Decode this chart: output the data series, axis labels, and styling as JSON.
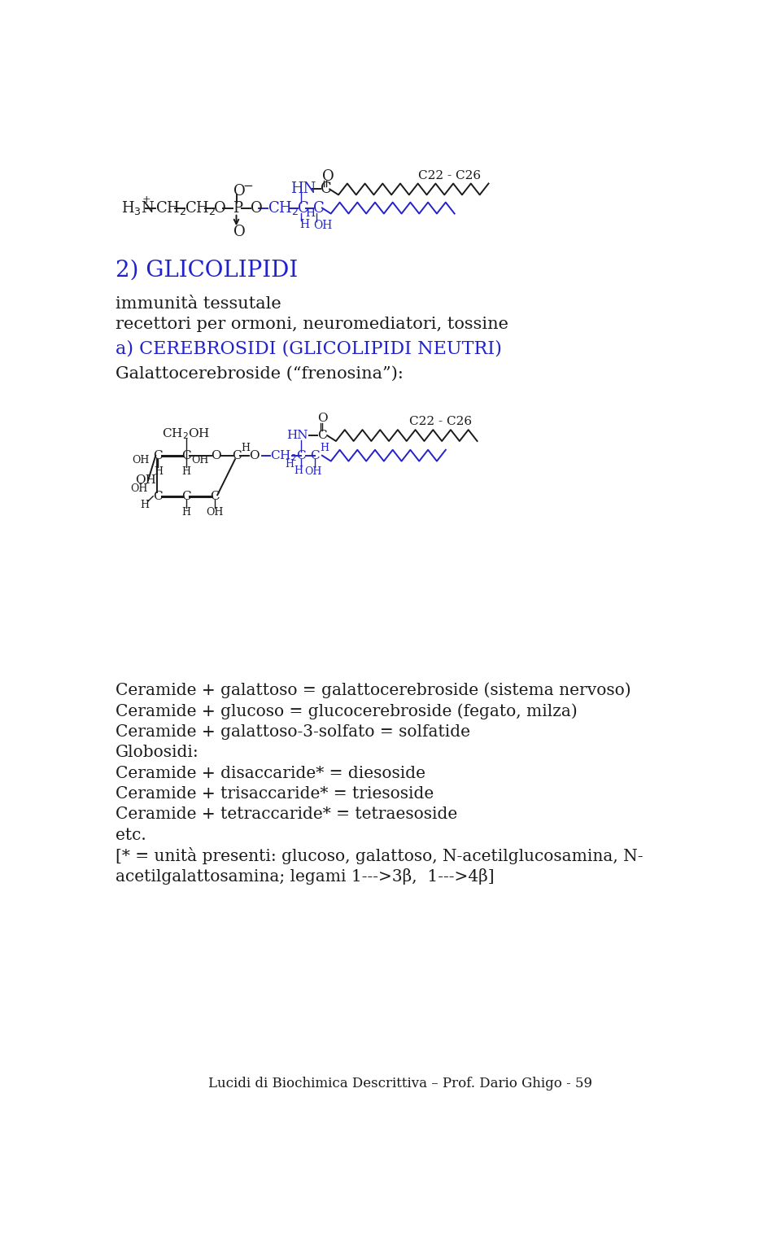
{
  "bg_color": "#ffffff",
  "blue": "#2222cc",
  "black": "#1a1a1a",
  "title_glicolipidi": "2) GLICOLIPIDI",
  "line1": "immunità tessutale",
  "line2": "recettori per ormoni, neuromediatori, tossine",
  "cerebrosidi": "a) CEREBROSIDI (GLICOLIPIDI NEUTRI)",
  "galattocerebroside": "Galattocerebroside (“frenosina”):",
  "text_lines": [
    "Ceramide + galattoso = galattocerebroside (sistema nervoso)",
    "Ceramide + glucoso = glucocerebroside (fegato, milza)",
    "Ceramide + galattoso-3-solfato = solfatide",
    "Globosidi:",
    "Ceramide + disaccaride* = diesoside",
    "Ceramide + trisaccaride* = triesoside",
    "Ceramide + tetraccaride* = tetraesoside",
    "etc.",
    "[* = unità presenti: glucoso, galattoso, N-acetilglucosamina, N-",
    "acetilgalattosamina; legami 1--->3β,  1--->4β]"
  ],
  "footer": "Lucidi di Biochimica Descrittiva – Prof. Dario Ghigo - 59",
  "c22c26_label": "C22 - C26"
}
